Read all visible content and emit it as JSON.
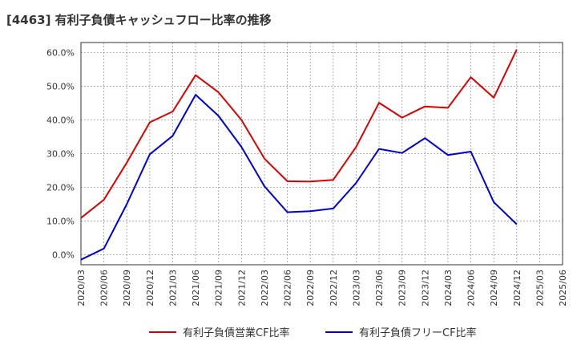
{
  "chart_data": {
    "type": "line",
    "title": "[4463]  有利子負債キャッシュフロー比率の推移",
    "x": [
      "2020/03",
      "2020/06",
      "2020/09",
      "2020/12",
      "2021/03",
      "2021/06",
      "2021/09",
      "2021/12",
      "2022/03",
      "2022/06",
      "2022/09",
      "2022/12",
      "2023/03",
      "2023/06",
      "2023/09",
      "2023/12",
      "2024/03",
      "2024/06",
      "2024/09",
      "2024/12",
      "2025/03",
      "2025/06"
    ],
    "ylim": [
      -3,
      63
    ],
    "yticks": [
      "0.0%",
      "10.0%",
      "20.0%",
      "30.0%",
      "40.0%",
      "50.0%",
      "60.0%"
    ],
    "grid": true,
    "legend_placement": "bottom",
    "series": [
      {
        "name": "有利子負債営業CF比率",
        "color": "#dd0000",
        "values": [
          10.9,
          16.3,
          27.3,
          39.3,
          42.5,
          53.3,
          48.2,
          40.0,
          28.5,
          21.8,
          21.7,
          22.2,
          32.0,
          45.1,
          40.7,
          44.0,
          43.6,
          52.7,
          46.6,
          60.9,
          null,
          null
        ]
      },
      {
        "name": "有利子負債フリーCF比率",
        "color": "#0000dd",
        "values": [
          -1.5,
          1.8,
          15.0,
          29.8,
          35.3,
          47.5,
          41.2,
          32.0,
          20.3,
          12.6,
          12.9,
          13.7,
          21.3,
          31.4,
          30.2,
          34.6,
          29.6,
          30.6,
          15.6,
          9.0,
          null,
          null
        ]
      }
    ]
  }
}
